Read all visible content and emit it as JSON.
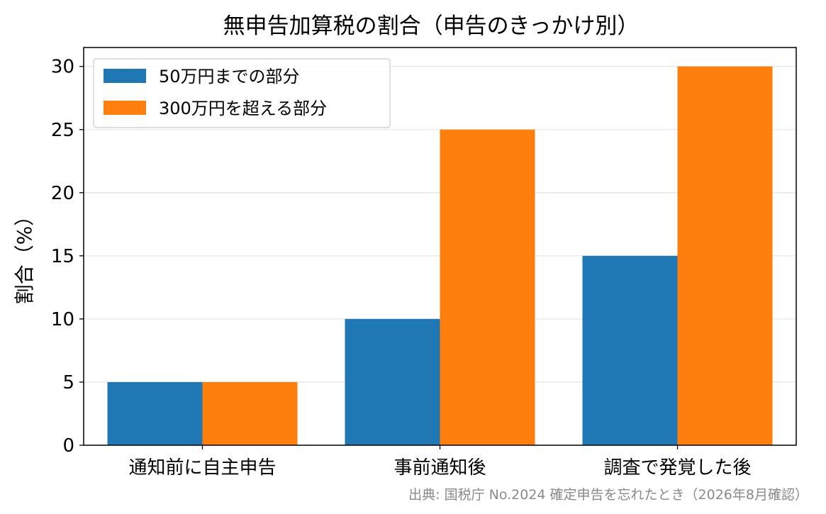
{
  "chart_data": {
    "type": "bar",
    "title": "無申告加算税の割合（申告のきっかけ別）",
    "xlabel": "",
    "ylabel": "割合（%）",
    "categories": [
      "通知前に自主申告",
      "事前通知後",
      "調査で発覚した後"
    ],
    "series": [
      {
        "name": "50万円までの部分",
        "values": [
          5,
          10,
          15
        ],
        "color": "#1f77b4"
      },
      {
        "name": "300万円を超える部分",
        "values": [
          5,
          25,
          30
        ],
        "color": "#ff7f0e"
      }
    ],
    "ylim": [
      0,
      31.5
    ],
    "yticks": [
      0,
      5,
      10,
      15,
      20,
      25,
      30
    ],
    "grid": true,
    "legend_position": "top-left"
  },
  "source_note": "出典: 国税庁 No.2024 確定申告を忘れたとき（2026年8月確認）"
}
